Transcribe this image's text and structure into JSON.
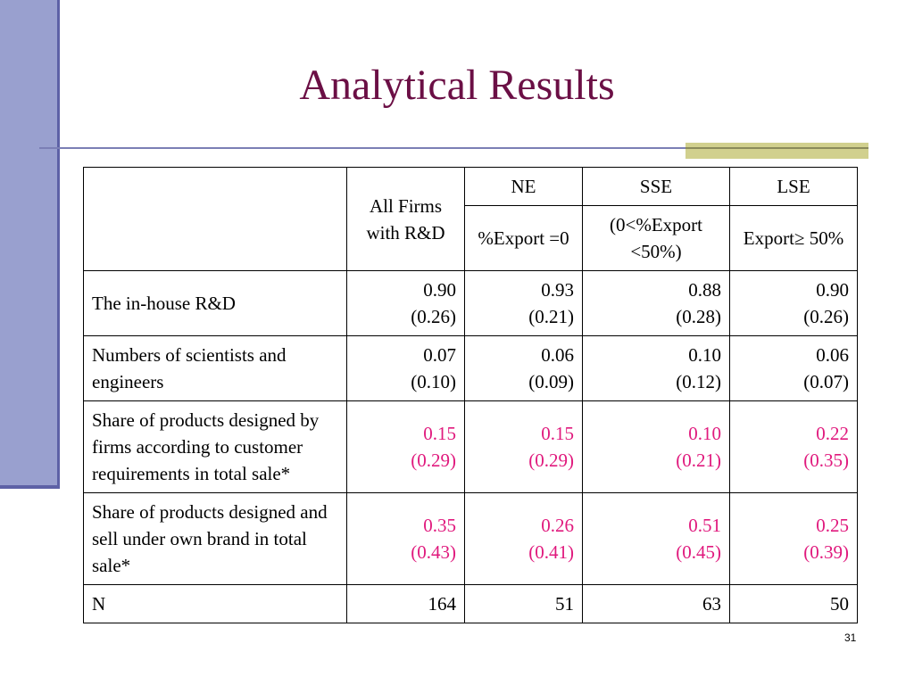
{
  "title": "Analytical Results",
  "slide_number": "31",
  "table": {
    "header": {
      "all_firms": "All Firms with R&D",
      "groups": [
        {
          "label": "NE",
          "sub": "%Export =0"
        },
        {
          "label": "SSE",
          "sub": "(0<%Export <50%)"
        },
        {
          "label": "LSE",
          "sub": "Export≥ 50%"
        }
      ]
    },
    "rows": [
      {
        "label": "The in-house R&D",
        "cells": [
          {
            "value": "0.90",
            "sd": "(0.26)"
          },
          {
            "value": "0.93",
            "sd": "(0.21)"
          },
          {
            "value": "0.88",
            "sd": "(0.28)"
          },
          {
            "value": "0.90",
            "sd": "(0.26)"
          }
        ]
      },
      {
        "label": "Numbers of scientists and engineers",
        "cells": [
          {
            "value": "0.07",
            "sd": "(0.10)"
          },
          {
            "value": "0.06",
            "sd": "(0.09)"
          },
          {
            "value": "0.10",
            "sd": "(0.12)"
          },
          {
            "value": "0.06",
            "sd": "(0.07)"
          }
        ]
      },
      {
        "label": "Share of products designed by firms according to customer requirements in total sale*",
        "highlight_color": "#e0197d",
        "cells": [
          {
            "value": "0.15",
            "sd": "(0.29)"
          },
          {
            "value": "0.15",
            "sd": "(0.29)"
          },
          {
            "value": "0.10",
            "sd": "(0.21)"
          },
          {
            "value": "0.22",
            "sd": "(0.35)"
          }
        ]
      },
      {
        "label": "Share of products designed and sell under own brand in total sale*",
        "highlight_color": "#e0197d",
        "cells": [
          {
            "value": "0.35",
            "sd": "(0.43)"
          },
          {
            "value": "0.26",
            "sd": "(0.41)"
          },
          {
            "value": "0.51",
            "sd": "(0.45)"
          },
          {
            "value": "0.25",
            "sd": "(0.39)"
          }
        ]
      },
      {
        "label": "N",
        "cells": [
          {
            "value": "164"
          },
          {
            "value": "51"
          },
          {
            "value": "63"
          },
          {
            "value": "50"
          }
        ]
      }
    ]
  },
  "colors": {
    "title": "#6b0f45",
    "highlight": "#e0197d",
    "sidebar": "#99a0cf",
    "accent": "#d1d08e"
  }
}
